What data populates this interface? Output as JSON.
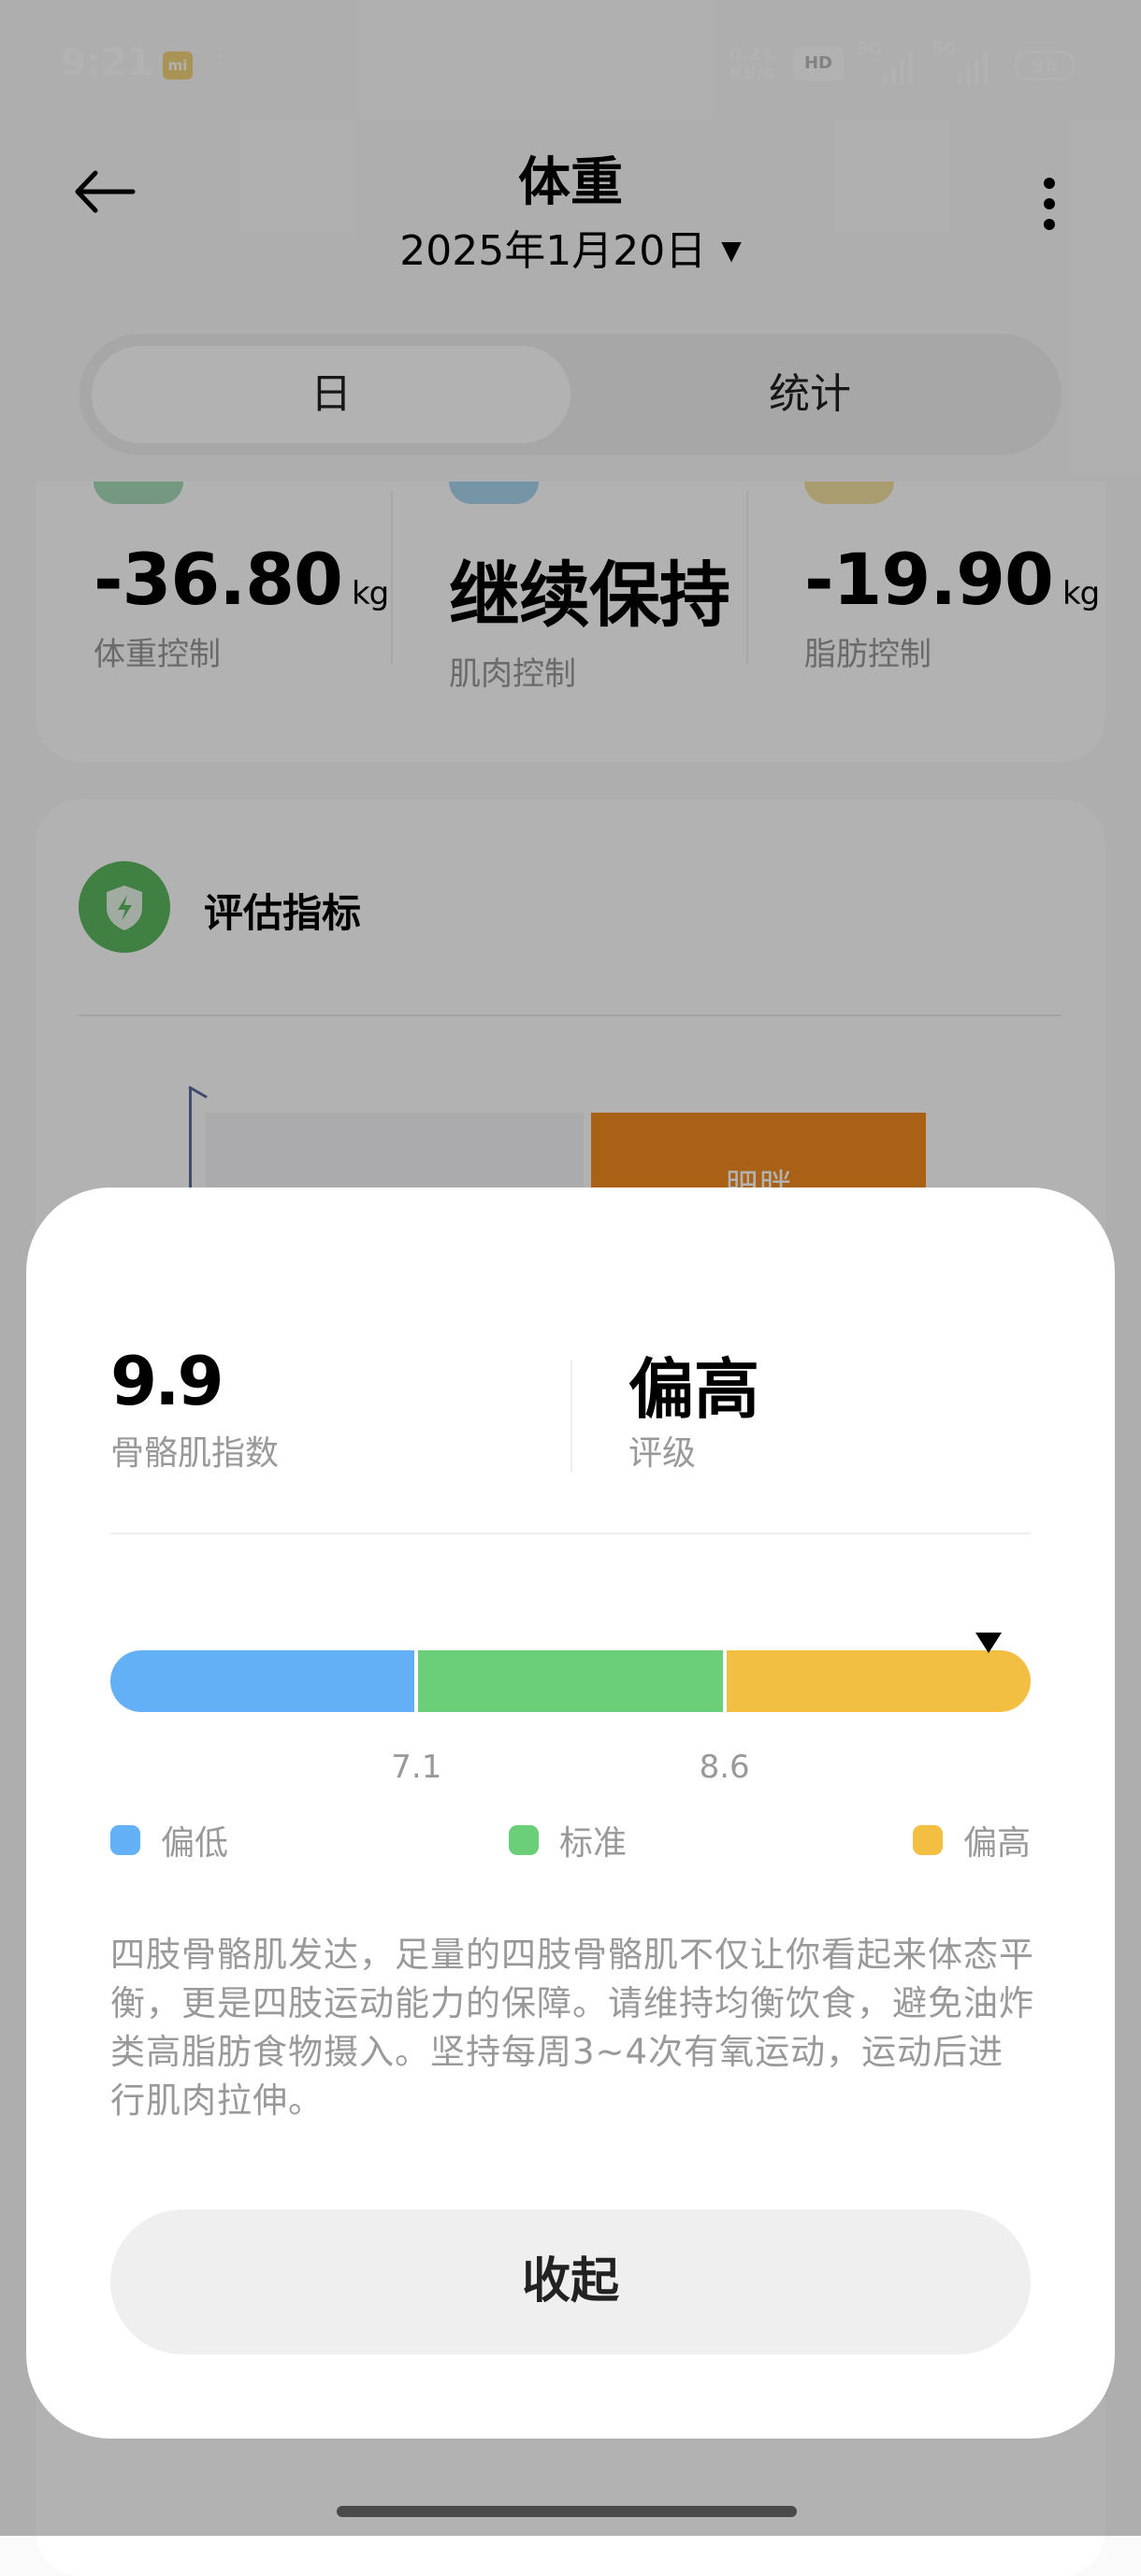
{
  "status_bar": {
    "time": "9:21",
    "app_badge": "mi",
    "more": "···",
    "net_speed_value": "0.21",
    "net_speed_unit": "KB/s",
    "hd": "HD",
    "sim1": "5G",
    "sim2": "5G",
    "battery": "96"
  },
  "header": {
    "title": "体重",
    "date": "2025年1月20日",
    "date_dropdown_icon": "caret-down",
    "back_icon": "arrow-left",
    "menu_icon": "more-vertical"
  },
  "tabs": [
    {
      "label": "日",
      "selected": true
    },
    {
      "label": "统计",
      "selected": false
    }
  ],
  "summary": [
    {
      "value": "-36.80",
      "unit": "kg",
      "label": "体重控制",
      "accent": "#a8dcb8"
    },
    {
      "value": "继续保持",
      "unit": "",
      "label": "肌肉控制",
      "accent": "#a8d4ee"
    },
    {
      "value": "-19.90",
      "unit": "kg",
      "label": "脂肪控制",
      "accent": "#f3e0a0"
    }
  ],
  "assessment": {
    "title": "评估指标",
    "icon": "shield-bolt",
    "icon_color": "#5cb861",
    "bar_label": "肥胖",
    "bar_color": "#f28b1f"
  },
  "sheet": {
    "value": "9.9",
    "value_label": "骨骼肌指数",
    "rating": "偏高",
    "rating_label": "评级",
    "gauge": {
      "value": 9.9,
      "thresholds": [
        "7.1",
        "8.6"
      ],
      "segments": [
        {
          "label": "偏低",
          "color": "#64b0f6"
        },
        {
          "label": "标准",
          "color": "#6bcf7a"
        },
        {
          "label": "偏高",
          "color": "#f3bf43"
        }
      ]
    },
    "description": "四肢骨骼肌发达，足量的四肢骨骼肌不仅让你看起来体态平衡，更是四肢运动能力的保障。请维持均衡饮食，避免油炸类高脂肪食物摄入。坚持每周3~4次有氧运动，运动后进行肌肉拉伸。",
    "collapse_label": "收起"
  }
}
